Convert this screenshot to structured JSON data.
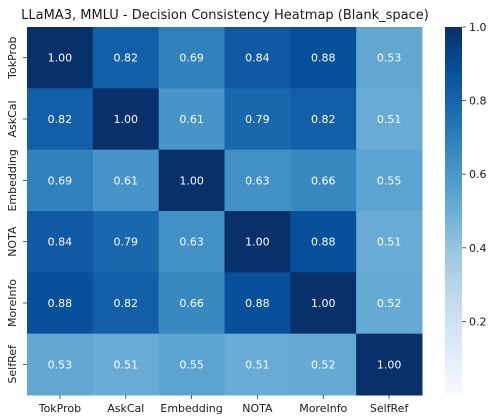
{
  "chart_data": {
    "type": "heatmap",
    "title": "LLaMA3, MMLU - Decision Consistency Heatmap (Blank_space)",
    "xlabel": "",
    "ylabel": "",
    "x_categories": [
      "TokProb",
      "AskCal",
      "Embedding",
      "NOTA",
      "MoreInfo",
      "SelfRef"
    ],
    "y_categories": [
      "TokProb",
      "AskCal",
      "Embedding",
      "NOTA",
      "MoreInfo",
      "SelfRef"
    ],
    "values": [
      [
        1.0,
        0.82,
        0.69,
        0.84,
        0.88,
        0.53
      ],
      [
        0.82,
        1.0,
        0.61,
        0.79,
        0.82,
        0.51
      ],
      [
        0.69,
        0.61,
        1.0,
        0.63,
        0.66,
        0.55
      ],
      [
        0.84,
        0.79,
        0.63,
        1.0,
        0.88,
        0.51
      ],
      [
        0.88,
        0.82,
        0.66,
        0.88,
        1.0,
        0.52
      ],
      [
        0.53,
        0.51,
        0.55,
        0.51,
        0.52,
        1.0
      ]
    ],
    "colormap": "Blues",
    "color_range": [
      0.0,
      1.0
    ],
    "colorbar_ticks": [
      0.2,
      0.4,
      0.6,
      0.8,
      1.0
    ],
    "annotation_format": "0.00",
    "legend": "colorbar-right"
  }
}
